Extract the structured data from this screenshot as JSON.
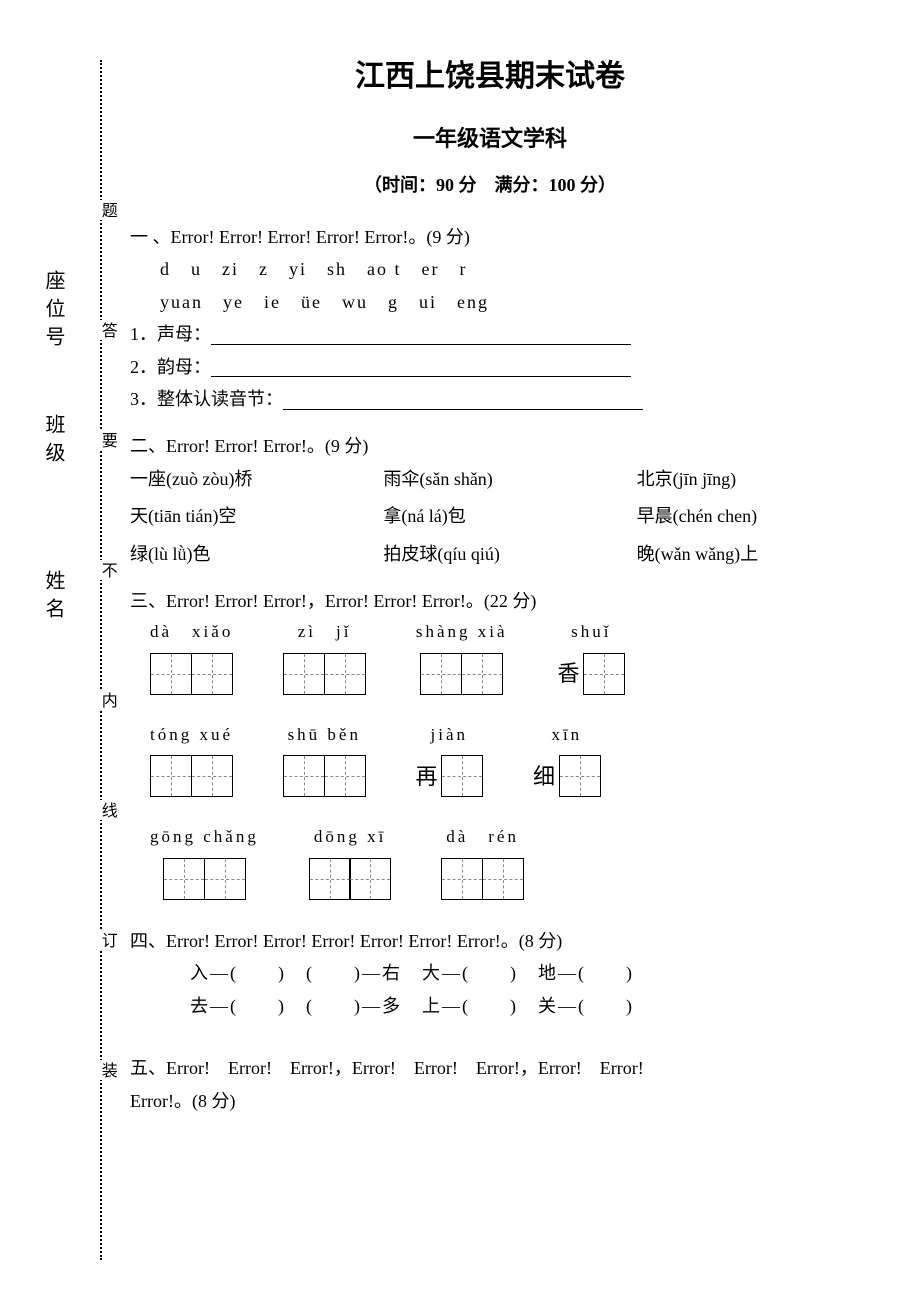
{
  "title": "江西上饶县期末试卷",
  "subtitle": "一年级语文学科",
  "meta": "（时间：90 分　满分：100 分）",
  "side": {
    "name": "姓名",
    "class": "班级",
    "seat": "座位号"
  },
  "dotted": {
    "zhuang": "装",
    "ding": "订",
    "xian": "线",
    "nei": "内",
    "bu": "不",
    "yao": "要",
    "da": "答",
    "ti": "题"
  },
  "q1": {
    "heading": "一 、Error! Error! Error! Error! Error!。(9 分)",
    "pinyin_line1": "d　u　zi　z　yi　sh　ao t　er　r",
    "pinyin_line2": "yuan　ye　ie　üe　wu　g　ui　eng",
    "item1": "1．声母：",
    "item2": "2．韵母：",
    "item3": "3．整体认读音节："
  },
  "q2": {
    "heading": "二、Error! Error! Error!。(9 分)",
    "r1c1": "一座(zuò zòu)桥",
    "r1c2": "雨伞(sǎn shǎn)",
    "r1c3": "北京(jīn jīng)",
    "r2c1": "天(tiān tián)空",
    "r2c2": "拿(ná lá)包",
    "r2c3": "早晨(chén chen)",
    "r3c1": "绿(lù lǜ)色",
    "r3c2": "拍皮球(qíu qiú)",
    "r3c3": "晚(wǎn wǎng)上"
  },
  "q3": {
    "heading": "三、Error! Error! Error!，Error! Error! Error!。(22 分)",
    "r1": [
      {
        "pinyin": "dà　xiǎo",
        "boxes": 2,
        "prefix": ""
      },
      {
        "pinyin": "zì　jǐ",
        "boxes": 2,
        "prefix": ""
      },
      {
        "pinyin": "shàng xià",
        "boxes": 2,
        "prefix": ""
      },
      {
        "pinyin": "shuǐ",
        "boxes": 1,
        "prefix": "香"
      }
    ],
    "r2": [
      {
        "pinyin": "tóng xué",
        "boxes": 2,
        "prefix": ""
      },
      {
        "pinyin": "shū běn",
        "boxes": 2,
        "prefix": ""
      },
      {
        "pinyin": "jiàn",
        "boxes": 1,
        "prefix": "再"
      },
      {
        "pinyin": "xīn",
        "boxes": 1,
        "prefix": "细"
      }
    ],
    "r3": [
      {
        "pinyin": "gōng chǎng",
        "boxes": 2,
        "prefix": ""
      },
      {
        "pinyin": "dōng xī",
        "boxes": 2,
        "prefix": ""
      },
      {
        "pinyin": "dà　rén",
        "boxes": 2,
        "prefix": ""
      }
    ]
  },
  "q4": {
    "heading": "四、Error! Error! Error! Error! Error! Error! Error!。(8 分)",
    "line1": "入—(　　)　(　　)—右　大—(　　)　地—(　　)",
    "line2": "去—(　　)　(　　)—多　上—(　　)　关—(　　)"
  },
  "q5": {
    "heading": "五、Error!　Error!　Error!，Error!　Error!　Error!，Error!　Error!",
    "heading2": "Error!。(8 分)"
  }
}
